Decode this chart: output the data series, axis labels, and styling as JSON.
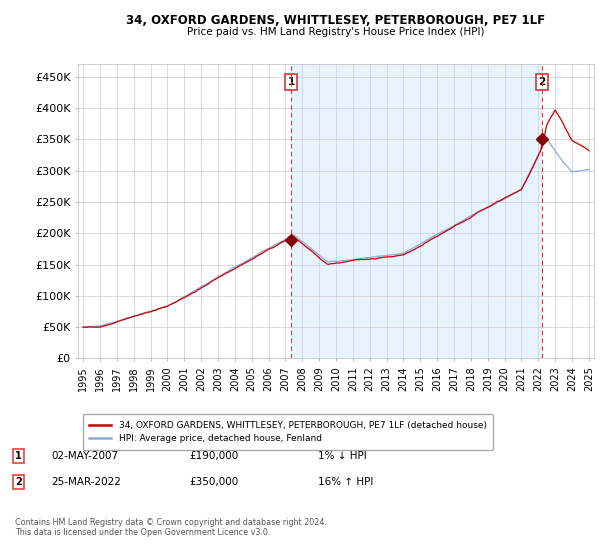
{
  "title_line1": "34, OXFORD GARDENS, WHITTLESEY, PETERBOROUGH, PE7 1LF",
  "title_line2": "Price paid vs. HM Land Registry's House Price Index (HPI)",
  "ylabel_ticks": [
    "£0",
    "£50K",
    "£100K",
    "£150K",
    "£200K",
    "£250K",
    "£300K",
    "£350K",
    "£400K",
    "£450K"
  ],
  "ytick_values": [
    0,
    50000,
    100000,
    150000,
    200000,
    250000,
    300000,
    350000,
    400000,
    450000
  ],
  "ylim": [
    0,
    470000
  ],
  "xlim_start": 1994.7,
  "xlim_end": 2025.3,
  "sale1_date": 2007.33,
  "sale1_price": 190000,
  "sale1_label": "1",
  "sale2_date": 2022.23,
  "sale2_price": 350000,
  "sale2_label": "2",
  "red_color": "#cc0000",
  "blue_color": "#88aadd",
  "dashed_red": "#dd3333",
  "shade_color": "#ddeeff",
  "legend_line1": "34, OXFORD GARDENS, WHITTLESEY, PETERBOROUGH, PE7 1LF (detached house)",
  "legend_line2": "HPI: Average price, detached house, Fenland",
  "footnote": "Contains HM Land Registry data © Crown copyright and database right 2024.\nThis data is licensed under the Open Government Licence v3.0.",
  "background_color": "#ffffff",
  "grid_color": "#cccccc"
}
